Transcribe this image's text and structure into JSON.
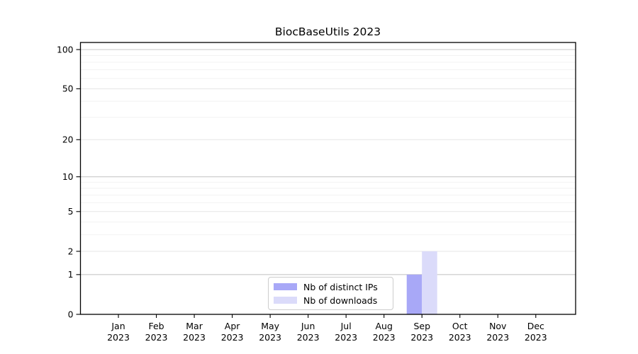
{
  "chart_data": {
    "type": "bar",
    "title": "BiocBaseUtils 2023",
    "categories": [
      "Jan",
      "Feb",
      "Mar",
      "Apr",
      "May",
      "Jun",
      "Jul",
      "Aug",
      "Sep",
      "Oct",
      "Nov",
      "Dec"
    ],
    "category_year": "2023",
    "series": [
      {
        "key": "distinct-ips",
        "name": "Nb of distinct IPs",
        "color": "#a8a8f7",
        "values": [
          0,
          0,
          0,
          0,
          0,
          0,
          0,
          0,
          1,
          0,
          0,
          0
        ]
      },
      {
        "key": "downloads",
        "name": "Nb of downloads",
        "color": "#dbdbfa",
        "values": [
          0,
          0,
          0,
          0,
          0,
          0,
          0,
          0,
          2,
          0,
          0,
          0
        ]
      }
    ],
    "y_axis": {
      "scale": "log1p",
      "range": [
        0,
        100
      ],
      "ticks": [
        0,
        1,
        2,
        5,
        10,
        20,
        50,
        100
      ],
      "minor_gridlines": [
        3,
        4,
        6,
        7,
        8,
        9,
        30,
        40,
        60,
        70,
        80,
        90
      ],
      "decade_gridlines": [
        1,
        10,
        100
      ]
    },
    "legend": {
      "position": "inside-bottom-center"
    },
    "grid": true,
    "colors": {
      "axis": "#000000",
      "background": "#ffffff",
      "grid_minor": "#f2f2f2",
      "grid_major": "#e5e5e5",
      "grid_decade": "#c8c8c8",
      "legend_border": "#cccccc",
      "bar_distinct_ips": "#a8a8f7",
      "bar_downloads": "#dbdbfa"
    }
  }
}
